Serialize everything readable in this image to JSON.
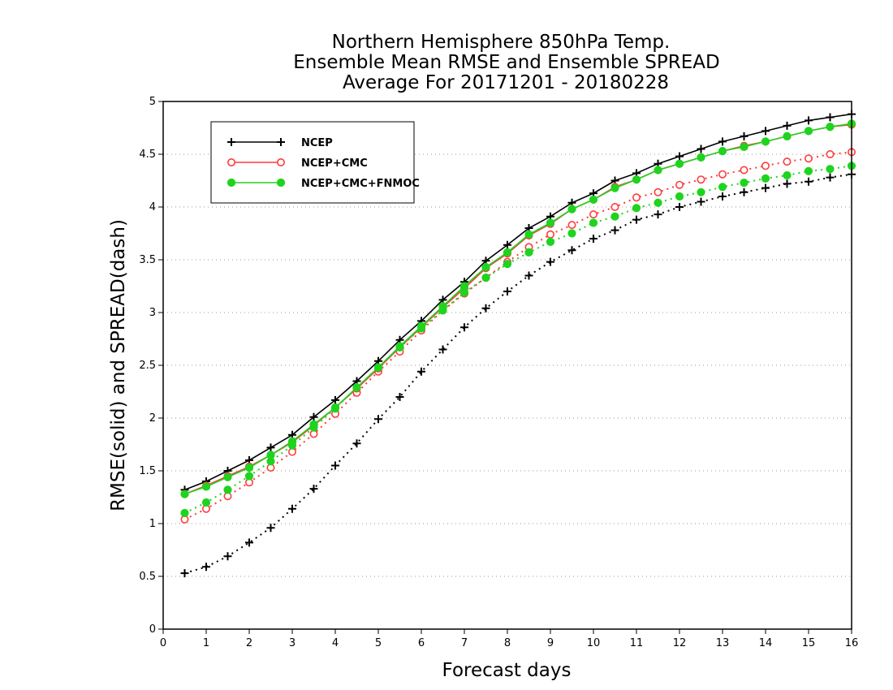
{
  "chart_data": {
    "type": "line",
    "title_lines": [
      "Northern Hemisphere 850hPa Temp.",
      "Ensemble Mean RMSE and Ensemble SPREAD",
      "Average For 20171201 - 20180228"
    ],
    "xlabel": "Forecast days",
    "ylabel": "RMSE(solid) and SPREAD(dash)",
    "xlim": [
      0,
      16
    ],
    "ylim": [
      0,
      5
    ],
    "xticks": [
      "0",
      "1",
      "2",
      "3",
      "4",
      "5",
      "6",
      "7",
      "8",
      "9",
      "10",
      "11",
      "12",
      "13",
      "14",
      "15",
      "16"
    ],
    "yticks": [
      "0",
      "0.5",
      "1",
      "1.5",
      "2",
      "2.5",
      "3",
      "3.5",
      "4",
      "4.5",
      "5"
    ],
    "grid": "horizontal dotted",
    "legend_position": "top-left",
    "x": [
      0.5,
      1,
      1.5,
      2,
      2.5,
      3,
      3.5,
      4,
      4.5,
      5,
      5.5,
      6,
      6.5,
      7,
      7.5,
      8,
      8.5,
      9,
      9.5,
      10,
      10.5,
      11,
      11.5,
      12,
      12.5,
      13,
      13.5,
      14,
      14.5,
      15,
      15.5,
      16
    ],
    "series": [
      {
        "name": "NCEP",
        "color": "#000000",
        "marker": "plus",
        "rmse": [
          1.32,
          1.4,
          1.5,
          1.6,
          1.72,
          1.84,
          2.01,
          2.17,
          2.35,
          2.54,
          2.74,
          2.92,
          3.12,
          3.29,
          3.49,
          3.64,
          3.8,
          3.91,
          4.04,
          4.13,
          4.25,
          4.32,
          4.41,
          4.48,
          4.55,
          4.62,
          4.67,
          4.72,
          4.77,
          4.82,
          4.85,
          4.88
        ],
        "spread": [
          0.53,
          0.59,
          0.69,
          0.82,
          0.96,
          1.14,
          1.33,
          1.55,
          1.76,
          1.99,
          2.2,
          2.44,
          2.65,
          2.86,
          3.04,
          3.2,
          3.35,
          3.48,
          3.59,
          3.7,
          3.78,
          3.88,
          3.93,
          4.0,
          4.05,
          4.1,
          4.14,
          4.18,
          4.22,
          4.24,
          4.28,
          4.31
        ]
      },
      {
        "name": "NCEP+CMC",
        "color": "#ff3a3a",
        "marker": "open-circle",
        "rmse": [
          1.28,
          1.36,
          1.45,
          1.54,
          1.65,
          1.77,
          1.93,
          2.1,
          2.28,
          2.47,
          2.67,
          2.86,
          3.05,
          3.23,
          3.42,
          3.56,
          3.73,
          3.84,
          3.98,
          4.07,
          4.19,
          4.26,
          4.35,
          4.41,
          4.47,
          4.53,
          4.58,
          4.62,
          4.67,
          4.72,
          4.76,
          4.78
        ],
        "spread": [
          1.04,
          1.14,
          1.26,
          1.39,
          1.53,
          1.68,
          1.85,
          2.04,
          2.24,
          2.44,
          2.63,
          2.83,
          3.02,
          3.18,
          3.33,
          3.48,
          3.62,
          3.74,
          3.83,
          3.93,
          4.0,
          4.09,
          4.14,
          4.21,
          4.26,
          4.31,
          4.35,
          4.39,
          4.43,
          4.46,
          4.5,
          4.52
        ]
      },
      {
        "name": "NCEP+CMC+FNMOC",
        "color": "#1ed41e",
        "marker": "filled-circle",
        "rmse": [
          1.28,
          1.35,
          1.44,
          1.53,
          1.65,
          1.78,
          1.94,
          2.1,
          2.29,
          2.48,
          2.68,
          2.87,
          3.06,
          3.25,
          3.43,
          3.57,
          3.74,
          3.85,
          3.98,
          4.07,
          4.18,
          4.26,
          4.35,
          4.41,
          4.47,
          4.53,
          4.57,
          4.62,
          4.67,
          4.72,
          4.76,
          4.79
        ],
        "spread": [
          1.1,
          1.2,
          1.32,
          1.45,
          1.59,
          1.74,
          1.91,
          2.09,
          2.29,
          2.48,
          2.67,
          2.85,
          3.02,
          3.19,
          3.33,
          3.46,
          3.57,
          3.67,
          3.75,
          3.85,
          3.91,
          3.99,
          4.04,
          4.1,
          4.14,
          4.19,
          4.23,
          4.27,
          4.3,
          4.34,
          4.36,
          4.39
        ]
      }
    ]
  }
}
